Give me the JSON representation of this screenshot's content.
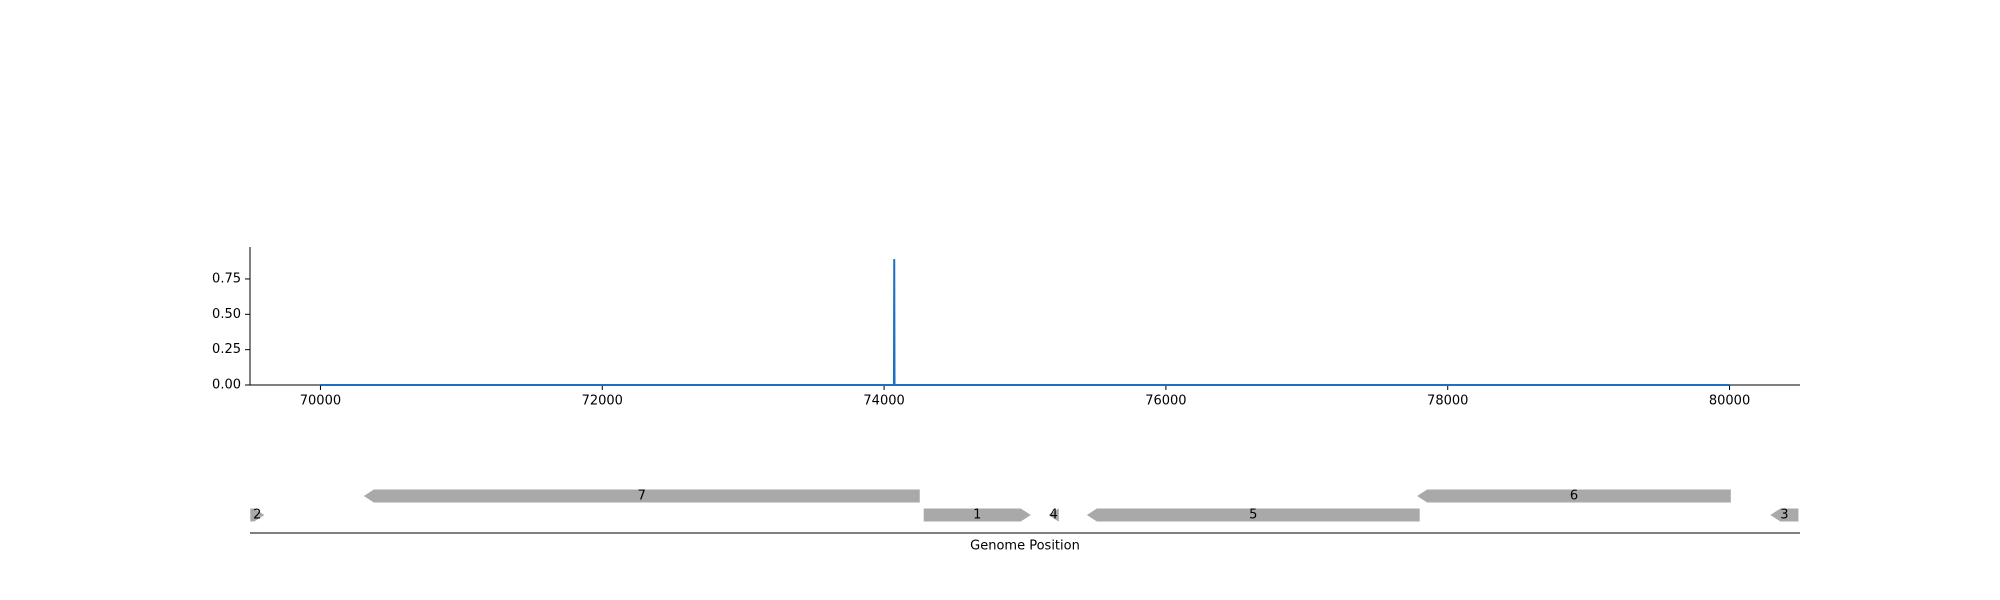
{
  "chart_data": [
    {
      "type": "line",
      "x": [
        70000,
        74070,
        74072,
        74074,
        80000
      ],
      "values": [
        0,
        0,
        0.89,
        0,
        0
      ],
      "color": "#1f6fbf",
      "xlim": [
        69500,
        80500
      ],
      "ylim": [
        0,
        0.976
      ],
      "xticks": [
        70000,
        72000,
        74000,
        76000,
        78000,
        80000
      ],
      "yticks": [
        {
          "value": 0,
          "label": "0.00"
        },
        {
          "value": 0.25,
          "label": "0.25"
        },
        {
          "value": 0.5,
          "label": "0.50"
        },
        {
          "value": 0.75,
          "label": "0.75"
        }
      ]
    },
    {
      "type": "gene-track",
      "xlabel": "Genome Position",
      "xlim": [
        69500,
        80500
      ],
      "color": "#a9a9a9",
      "features": [
        {
          "label": "1",
          "start": 74281,
          "end": 75041,
          "strand": 1
        },
        {
          "label": "2",
          "start": 69502,
          "end": 69602,
          "strand": 1
        },
        {
          "label": "3",
          "start": 80290,
          "end": 80489,
          "strand": -1
        },
        {
          "label": "4",
          "start": 75167,
          "end": 75240,
          "strand": -1
        },
        {
          "label": "5",
          "start": 75439,
          "end": 77801,
          "strand": -1
        },
        {
          "label": "6",
          "start": 77783,
          "end": 80009,
          "strand": -1
        },
        {
          "label": "7",
          "start": 70308,
          "end": 74253,
          "strand": -1
        }
      ]
    }
  ]
}
